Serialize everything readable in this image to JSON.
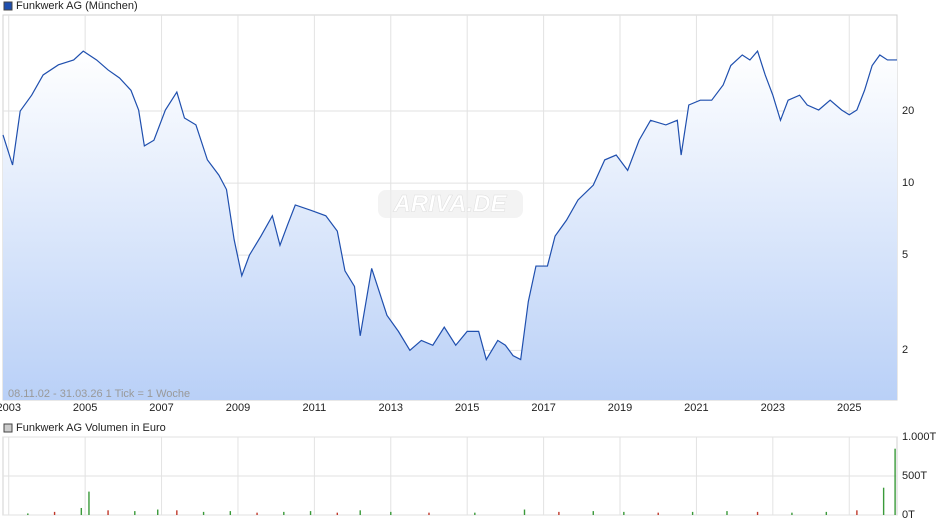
{
  "chart_data": [
    {
      "type": "line",
      "watermark": "ARIVA.DE",
      "info": "08.11.02 - 31.03.26   1 Tick = 1 Woche",
      "log_scale": true,
      "grid": true,
      "xlim": [
        2002.85,
        2026.25
      ],
      "xticks": [
        2003,
        2005,
        2007,
        2009,
        2011,
        2013,
        2015,
        2017,
        2019,
        2021,
        2023,
        2025
      ],
      "ylim": [
        1.24,
        50.4
      ],
      "yticks": [
        2,
        5,
        10,
        20
      ],
      "series": [
        {
          "name": "Funkwerk AG (München)",
          "color": "#1f4fae",
          "x": [
            2002.85,
            2003.1,
            2003.3,
            2003.6,
            2003.9,
            2004.3,
            2004.7,
            2004.95,
            2005.3,
            2005.6,
            2005.9,
            2006.2,
            2006.4,
            2006.55,
            2006.8,
            2007.1,
            2007.4,
            2007.6,
            2007.9,
            2008.2,
            2008.5,
            2008.7,
            2008.9,
            2009.1,
            2009.3,
            2009.6,
            2009.9,
            2010.1,
            2010.3,
            2010.5,
            2010.9,
            2011.3,
            2011.6,
            2011.8,
            2012.05,
            2012.2,
            2012.5,
            2012.9,
            2013.2,
            2013.5,
            2013.8,
            2014.1,
            2014.4,
            2014.7,
            2015.0,
            2015.3,
            2015.5,
            2015.8,
            2016.0,
            2016.2,
            2016.4,
            2016.6,
            2016.8,
            2017.1,
            2017.3,
            2017.6,
            2017.9,
            2018.3,
            2018.6,
            2018.9,
            2019.2,
            2019.5,
            2019.8,
            2020.2,
            2020.5,
            2020.6,
            2020.8,
            2021.1,
            2021.4,
            2021.7,
            2021.9,
            2022.2,
            2022.4,
            2022.6,
            2022.8,
            2023.0,
            2023.2,
            2023.4,
            2023.7,
            2023.9,
            2024.2,
            2024.5,
            2024.8,
            2025.0,
            2025.2,
            2025.4,
            2025.6,
            2025.8,
            2026.0,
            2026.25
          ],
          "values": [
            15.9,
            11.9,
            20,
            23.3,
            28.3,
            31.2,
            32.7,
            35.6,
            32.7,
            29.7,
            27.5,
            24.4,
            20.2,
            14.3,
            15.1,
            20.2,
            24.0,
            18.7,
            17.5,
            12.5,
            10.8,
            9.4,
            5.8,
            4.1,
            5.0,
            6.0,
            7.3,
            5.5,
            6.7,
            8.1,
            7.7,
            7.3,
            6.3,
            4.3,
            3.7,
            2.3,
            4.4,
            2.8,
            2.4,
            2.0,
            2.2,
            2.1,
            2.5,
            2.1,
            2.4,
            2.4,
            1.83,
            2.2,
            2.1,
            1.9,
            1.83,
            3.2,
            4.5,
            4.5,
            6.0,
            7.0,
            8.5,
            9.8,
            12.5,
            13.1,
            11.3,
            15.1,
            18.3,
            17.5,
            18.3,
            13.1,
            21.2,
            22.2,
            22.2,
            25.7,
            31.0,
            34.3,
            32.7,
            35.6,
            28.3,
            23.3,
            18.3,
            22.2,
            23.3,
            21.2,
            20.2,
            22.2,
            20.2,
            19.3,
            20.2,
            24.4,
            31.0,
            34.3,
            32.7,
            32.7
          ]
        }
      ]
    },
    {
      "type": "bar",
      "grid": true,
      "xlim": [
        2002.85,
        2026.25
      ],
      "ylim": [
        0,
        1000000
      ],
      "yticks": [
        {
          "value": 0,
          "label": "0T"
        },
        {
          "value": 500000,
          "label": "500T"
        },
        {
          "value": 1000000,
          "label": "1.000T"
        }
      ],
      "series": [
        {
          "name": "Funkwerk AG Volumen in Euro",
          "color": "#3a9a3a",
          "x": [
            2003.5,
            2004.2,
            2004.9,
            2005.1,
            2005.6,
            2006.3,
            2006.9,
            2007.4,
            2008.1,
            2008.8,
            2009.5,
            2010.2,
            2010.9,
            2011.6,
            2012.2,
            2013.0,
            2014.0,
            2015.2,
            2016.5,
            2017.4,
            2018.3,
            2019.1,
            2020.0,
            2020.9,
            2021.8,
            2022.6,
            2023.5,
            2024.4,
            2025.2,
            2025.9,
            2026.2
          ],
          "values": [
            20000,
            40000,
            90000,
            300000,
            60000,
            50000,
            70000,
            60000,
            40000,
            50000,
            30000,
            40000,
            50000,
            30000,
            60000,
            40000,
            30000,
            30000,
            70000,
            40000,
            50000,
            40000,
            30000,
            40000,
            50000,
            40000,
            30000,
            40000,
            60000,
            350000,
            850000
          ]
        }
      ]
    }
  ]
}
